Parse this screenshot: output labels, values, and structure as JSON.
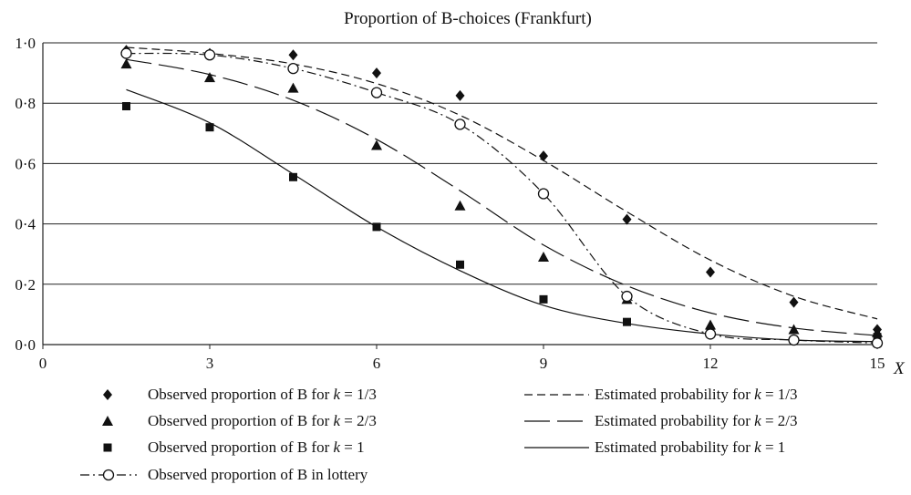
{
  "chart_data": {
    "type": "scatter",
    "title": "Proportion of B-choices (Frankfurt)",
    "xlabel": "X",
    "ylabel": "",
    "xlim": [
      0,
      15
    ],
    "ylim": [
      0,
      1
    ],
    "x_ticks": [
      0,
      3,
      6,
      9,
      12,
      15
    ],
    "x_tick_labels": [
      "0",
      "3",
      "6",
      "9",
      "12",
      "15"
    ],
    "y_ticks": [
      0,
      0.2,
      0.4,
      0.6,
      0.8,
      1.0
    ],
    "y_tick_labels": [
      "0·0",
      "0·2",
      "0·4",
      "0·6",
      "0·8",
      "1·0"
    ],
    "grid": "horizontal",
    "legend_position": "bottom",
    "series": [
      {
        "name": "Observed proportion of B for k = 1/3",
        "kind": "markers",
        "marker": "diamond",
        "x": [
          1.5,
          3,
          4.5,
          6,
          7.5,
          9,
          10.5,
          12,
          13.5,
          15
        ],
        "values": [
          0.975,
          0.965,
          0.96,
          0.9,
          0.825,
          0.625,
          0.415,
          0.24,
          0.14,
          0.05
        ]
      },
      {
        "name": "Observed proportion of B for k = 2/3",
        "kind": "markers",
        "marker": "triangle",
        "x": [
          1.5,
          3,
          4.5,
          6,
          7.5,
          9,
          10.5,
          12,
          13.5,
          15
        ],
        "values": [
          0.93,
          0.885,
          0.85,
          0.66,
          0.46,
          0.29,
          0.15,
          0.065,
          0.05,
          0.04
        ]
      },
      {
        "name": "Observed proportion of B for k = 1",
        "kind": "markers",
        "marker": "square",
        "x": [
          1.5,
          3,
          4.5,
          6,
          7.5,
          9,
          10.5,
          12,
          13.5,
          15
        ],
        "values": [
          0.79,
          0.72,
          0.555,
          0.39,
          0.265,
          0.15,
          0.075,
          0.04,
          0.015,
          0.025
        ]
      },
      {
        "name": "Observed proportion of B in lottery",
        "kind": "line-markers",
        "marker": "circle",
        "dash": "dashdot",
        "x": [
          1.5,
          3,
          4.5,
          6,
          7.5,
          9,
          10.5,
          12,
          13.5,
          15
        ],
        "values": [
          0.965,
          0.96,
          0.915,
          0.835,
          0.73,
          0.5,
          0.16,
          0.035,
          0.015,
          0.005
        ]
      },
      {
        "name": "Estimated probability for k = 1/3",
        "kind": "line",
        "dash": "short",
        "x": [
          1.5,
          3,
          4.5,
          6,
          7.5,
          9,
          10.5,
          12,
          13.5,
          15
        ],
        "values": [
          0.985,
          0.965,
          0.93,
          0.865,
          0.76,
          0.61,
          0.44,
          0.28,
          0.16,
          0.085
        ]
      },
      {
        "name": "Estimated probability for k = 2/3",
        "kind": "line",
        "dash": "long",
        "x": [
          1.5,
          3,
          4.5,
          6,
          7.5,
          9,
          10.5,
          12,
          13.5,
          15
        ],
        "values": [
          0.945,
          0.895,
          0.81,
          0.68,
          0.51,
          0.33,
          0.195,
          0.105,
          0.055,
          0.03
        ]
      },
      {
        "name": "Estimated probability for k = 1",
        "kind": "line",
        "dash": "solid",
        "x": [
          1.5,
          3,
          4.5,
          6,
          7.5,
          9,
          10.5,
          12,
          13.5,
          15
        ],
        "values": [
          0.845,
          0.735,
          0.565,
          0.39,
          0.245,
          0.13,
          0.07,
          0.035,
          0.015,
          0.01
        ]
      }
    ],
    "legend": [
      {
        "label_plain": "Observed proportion of B for ",
        "label_k": "k",
        "label_val": " = 1/3",
        "series_index": 0
      },
      {
        "label_plain": "Observed proportion of B for ",
        "label_k": "k",
        "label_val": " = 2/3",
        "series_index": 1
      },
      {
        "label_plain": "Observed proportion of B for ",
        "label_k": "k",
        "label_val": " = 1",
        "series_index": 2
      },
      {
        "label_plain": "Observed proportion of B in lottery",
        "label_k": "",
        "label_val": "",
        "series_index": 3
      },
      {
        "label_plain": "Estimated probability for ",
        "label_k": "k",
        "label_val": " = 1/3",
        "series_index": 4
      },
      {
        "label_plain": "Estimated probability for ",
        "label_k": "k",
        "label_val": " = 2/3",
        "series_index": 5
      },
      {
        "label_plain": "Estimated probability for ",
        "label_k": "k",
        "label_val": " = 1",
        "series_index": 6
      }
    ]
  }
}
